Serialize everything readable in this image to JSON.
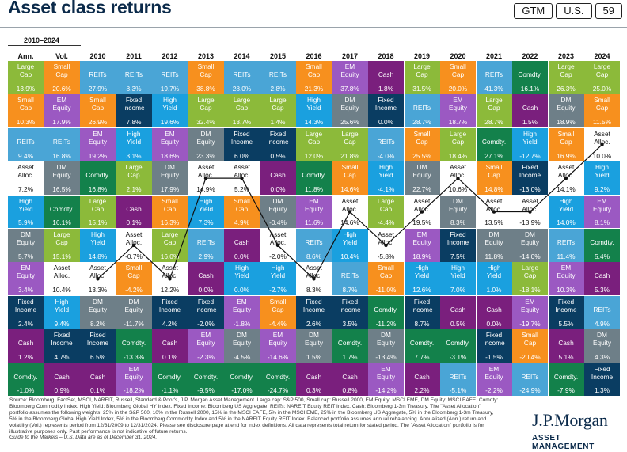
{
  "page": {
    "title": "Asset class returns",
    "badges": [
      "GTM",
      "U.S.",
      "59"
    ],
    "period_label": "2010–2024",
    "col_headers": [
      "Ann.",
      "Vol.",
      "2010",
      "2011",
      "2012",
      "2013",
      "2014",
      "2015",
      "2016",
      "2017",
      "2018",
      "2019",
      "2020",
      "2021",
      "2022",
      "2023",
      "2024"
    ],
    "footnote": "Source: Bloomberg, FactSet, MSCI, NAREIT, Russell, Standard & Poor's, J.P. Morgan Asset Management. Large cap: S&P 500, Small cap: Russell 2000, EM Equity: MSCI EME, DM Equity: MSCI EAFE, Comdty: Bloomberg Commodity Index, High Yield: Bloomberg Global HY Index, Fixed Income: Bloomberg US Aggregate, REITs: NAREIT Equity REIT Index, Cash: Bloomberg 1-3m Treasury. The \"Asset Allocation\" portfolio assumes the following weights: 25% in the S&P 500, 10% in the Russell 2000, 15% in the MSCI EAFE, 5% in the MSCI EME, 25% in the Bloomberg US Aggregate, 5% in the Bloomberg 1-3m Treasury, 5% in the Bloomberg Global High Yield Index, 5% in the Bloomberg Commodity Index and 5% in the NAREIT Equity REIT Index. Balanced portfolio assumes annual rebalancing. Annualized (Ann.) return and volatility (Vol.) represents period from 12/31/2009 to 12/31/2024. Please see disclosure page at end for index definitions. All data represents total return for stated period. The \"Asset Allocation\" portfolio is for illustrative purposes only. Past performance is not indicative of future returns.",
    "footnote_italic": "Guide to the Markets – U.S. Data are as of December 31, 2024.",
    "logo_brand": "J.P.Morgan",
    "logo_sub": "ASSET MANAGEMENT"
  },
  "colors": {
    "Large Cap": "#8cba3a",
    "Small Cap": "#f7901e",
    "EM Equity": "#9b59c2",
    "DM Equity": "#6e7f88",
    "Comdty.": "#13814b",
    "High Yield": "#1aa0df",
    "Fixed Income": "#0a3d62",
    "REITs": "#4aa5d6",
    "Cash": "#7a1f7d",
    "Asset Alloc.": "#ffffff"
  },
  "chart_data": {
    "type": "table",
    "title": "Asset class returns",
    "columns": [
      "Ann.",
      "Vol.",
      "2010",
      "2011",
      "2012",
      "2013",
      "2014",
      "2015",
      "2016",
      "2017",
      "2018",
      "2019",
      "2020",
      "2021",
      "2022",
      "2023",
      "2024"
    ],
    "rows": [
      [
        [
          "Large Cap",
          "13.9%"
        ],
        [
          "Small Cap",
          "20.6%"
        ],
        [
          "REITs",
          "27.9%"
        ],
        [
          "REITs",
          "8.3%"
        ],
        [
          "REITs",
          "19.7%"
        ],
        [
          "Small Cap",
          "38.8%"
        ],
        [
          "REITs",
          "28.0%"
        ],
        [
          "REITs",
          "2.8%"
        ],
        [
          "Small Cap",
          "21.3%"
        ],
        [
          "EM Equity",
          "37.8%"
        ],
        [
          "Cash",
          "1.8%"
        ],
        [
          "Large Cap",
          "31.5%"
        ],
        [
          "Small Cap",
          "20.0%"
        ],
        [
          "REITs",
          "41.3%"
        ],
        [
          "Comdty.",
          "16.1%"
        ],
        [
          "Large Cap",
          "26.3%"
        ],
        [
          "Large Cap",
          "25.0%"
        ]
      ],
      [
        [
          "Small Cap",
          "10.3%"
        ],
        [
          "EM Equity",
          "17.9%"
        ],
        [
          "Small Cap",
          "26.9%"
        ],
        [
          "Fixed Income",
          "7.8%"
        ],
        [
          "High Yield",
          "19.6%"
        ],
        [
          "Large Cap",
          "32.4%"
        ],
        [
          "Large Cap",
          "13.7%"
        ],
        [
          "Large Cap",
          "1.4%"
        ],
        [
          "High Yield",
          "14.3%"
        ],
        [
          "DM Equity",
          "25.6%"
        ],
        [
          "Fixed Income",
          "0.0%"
        ],
        [
          "REITs",
          "28.7%"
        ],
        [
          "EM Equity",
          "18.7%"
        ],
        [
          "Large Cap",
          "28.7%"
        ],
        [
          "Cash",
          "1.5%"
        ],
        [
          "DM Equity",
          "18.9%"
        ],
        [
          "Small Cap",
          "11.5%"
        ]
      ],
      [
        [
          "REITs",
          "9.4%"
        ],
        [
          "REITs",
          "16.8%"
        ],
        [
          "EM Equity",
          "19.2%"
        ],
        [
          "High Yield",
          "3.1%"
        ],
        [
          "EM Equity",
          "18.6%"
        ],
        [
          "DM Equity",
          "23.3%"
        ],
        [
          "Fixed Income",
          "6.0%"
        ],
        [
          "Fixed Income",
          "0.5%"
        ],
        [
          "Large Cap",
          "12.0%"
        ],
        [
          "Large Cap",
          "21.8%"
        ],
        [
          "REITs",
          "-4.0%"
        ],
        [
          "Small Cap",
          "25.5%"
        ],
        [
          "Large Cap",
          "18.4%"
        ],
        [
          "Comdty.",
          "27.1%"
        ],
        [
          "High Yield",
          "-12.7%"
        ],
        [
          "Small Cap",
          "16.9%"
        ],
        [
          "Asset Alloc.",
          "10.0%"
        ]
      ],
      [
        [
          "Asset Alloc.",
          "7.2%"
        ],
        [
          "DM Equity",
          "16.5%"
        ],
        [
          "Comdty.",
          "16.8%"
        ],
        [
          "Large Cap",
          "2.1%"
        ],
        [
          "DM Equity",
          "17.9%"
        ],
        [
          "Asset Alloc.",
          "14.9%"
        ],
        [
          "Asset Alloc.",
          "5.2%"
        ],
        [
          "Cash",
          "0.0%"
        ],
        [
          "Comdty.",
          "11.8%"
        ],
        [
          "Small Cap",
          "14.6%"
        ],
        [
          "High Yield",
          "-4.1%"
        ],
        [
          "DM Equity",
          "22.7%"
        ],
        [
          "Asset Alloc.",
          "10.6%"
        ],
        [
          "Small Cap",
          "14.8%"
        ],
        [
          "Fixed Income",
          "-13.0%"
        ],
        [
          "Asset Alloc.",
          "14.1%"
        ],
        [
          "High Yield",
          "9.2%"
        ]
      ],
      [
        [
          "High Yield",
          "5.9%"
        ],
        [
          "Comdty.",
          "16.1%"
        ],
        [
          "Large Cap",
          "15.1%"
        ],
        [
          "Cash",
          "0.1%"
        ],
        [
          "Small Cap",
          "16.3%"
        ],
        [
          "High Yield",
          "7.3%"
        ],
        [
          "Small Cap",
          "4.9%"
        ],
        [
          "DM Equity",
          "-0.4%"
        ],
        [
          "EM Equity",
          "11.6%"
        ],
        [
          "Asset Alloc.",
          "14.6%"
        ],
        [
          "Large Cap",
          "-4.4%"
        ],
        [
          "Asset Alloc.",
          "19.5%"
        ],
        [
          "DM Equity",
          "8.3%"
        ],
        [
          "Asset Alloc.",
          "13.5%"
        ],
        [
          "Asset Alloc.",
          "-13.9%"
        ],
        [
          "High Yield",
          "14.0%"
        ],
        [
          "EM Equity",
          "8.1%"
        ]
      ],
      [
        [
          "DM Equity",
          "5.7%"
        ],
        [
          "Large Cap",
          "15.1%"
        ],
        [
          "High Yield",
          "14.8%"
        ],
        [
          "Asset Alloc.",
          "-0.7%"
        ],
        [
          "Large Cap",
          "16.0%"
        ],
        [
          "REITs",
          "2.9%"
        ],
        [
          "Cash",
          "0.0%"
        ],
        [
          "Asset Alloc.",
          "-2.0%"
        ],
        [
          "REITs",
          "8.6%"
        ],
        [
          "High Yield",
          "10.4%"
        ],
        [
          "Asset Alloc.",
          "-5.8%"
        ],
        [
          "EM Equity",
          "18.9%"
        ],
        [
          "Fixed Income",
          "7.5%"
        ],
        [
          "DM Equity",
          "11.8%"
        ],
        [
          "DM Equity",
          "-14.0%"
        ],
        [
          "REITs",
          "11.4%"
        ],
        [
          "Comdty.",
          "5.4%"
        ]
      ],
      [
        [
          "EM Equity",
          "3.4%"
        ],
        [
          "Asset Alloc.",
          "10.4%"
        ],
        [
          "Asset Alloc.",
          "13.3%"
        ],
        [
          "Small Cap",
          "-4.2%"
        ],
        [
          "Asset Alloc.",
          "12.2%"
        ],
        [
          "Cash",
          "0.0%"
        ],
        [
          "High Yield",
          "0.0%"
        ],
        [
          "High Yield",
          "-2.7%"
        ],
        [
          "Asset Alloc.",
          "8.3%"
        ],
        [
          "REITs",
          "8.7%"
        ],
        [
          "Small Cap",
          "-11.0%"
        ],
        [
          "High Yield",
          "12.6%"
        ],
        [
          "High Yield",
          "7.0%"
        ],
        [
          "High Yield",
          "1.0%"
        ],
        [
          "Large Cap",
          "-18.1%"
        ],
        [
          "EM Equity",
          "10.3%"
        ],
        [
          "Cash",
          "5.3%"
        ]
      ],
      [
        [
          "Fixed Income",
          "2.4%"
        ],
        [
          "High Yield",
          "9.4%"
        ],
        [
          "DM Equity",
          "8.2%"
        ],
        [
          "DM Equity",
          "-11.7%"
        ],
        [
          "Fixed Income",
          "4.2%"
        ],
        [
          "Fixed Income",
          "-2.0%"
        ],
        [
          "EM Equity",
          "-1.8%"
        ],
        [
          "Small Cap",
          "-4.4%"
        ],
        [
          "Fixed Income",
          "2.6%"
        ],
        [
          "Fixed Income",
          "3.5%"
        ],
        [
          "Comdty.",
          "-11.2%"
        ],
        [
          "Fixed Income",
          "8.7%"
        ],
        [
          "Cash",
          "0.5%"
        ],
        [
          "Cash",
          "0.0%"
        ],
        [
          "EM Equity",
          "-19.7%"
        ],
        [
          "Fixed Income",
          "5.5%"
        ],
        [
          "REITs",
          "4.9%"
        ]
      ],
      [
        [
          "Cash",
          "1.2%"
        ],
        [
          "Fixed Income",
          "4.7%"
        ],
        [
          "Fixed Income",
          "6.5%"
        ],
        [
          "Comdty.",
          "-13.3%"
        ],
        [
          "Cash",
          "0.1%"
        ],
        [
          "EM Equity",
          "-2.3%"
        ],
        [
          "DM Equity",
          "-4.5%"
        ],
        [
          "EM Equity",
          "-14.6%"
        ],
        [
          "DM Equity",
          "1.5%"
        ],
        [
          "Comdty.",
          "1.7%"
        ],
        [
          "DM Equity",
          "-13.4%"
        ],
        [
          "Comdty.",
          "7.7%"
        ],
        [
          "Comdty.",
          "-3.1%"
        ],
        [
          "Fixed Income",
          "-1.5%"
        ],
        [
          "Small Cap",
          "-20.4%"
        ],
        [
          "Cash",
          "5.1%"
        ],
        [
          "DM Equity",
          "4.3%"
        ]
      ],
      [
        [
          "Comdty.",
          "-1.0%"
        ],
        [
          "Cash",
          "0.9%"
        ],
        [
          "Cash",
          "0.1%"
        ],
        [
          "EM Equity",
          "-18.2%"
        ],
        [
          "Comdty.",
          "-1.1%"
        ],
        [
          "Comdty.",
          "-9.5%"
        ],
        [
          "Comdty.",
          "-17.0%"
        ],
        [
          "Comdty.",
          "-24.7%"
        ],
        [
          "Cash",
          "0.3%"
        ],
        [
          "Cash",
          "0.8%"
        ],
        [
          "EM Equity",
          "-14.2%"
        ],
        [
          "Cash",
          "2.2%"
        ],
        [
          "REITs",
          "-5.1%"
        ],
        [
          "EM Equity",
          "-2.2%"
        ],
        [
          "REITs",
          "-24.9%"
        ],
        [
          "Comdty.",
          "-7.9%"
        ],
        [
          "Fixed Income",
          "1.3%"
        ]
      ]
    ]
  }
}
